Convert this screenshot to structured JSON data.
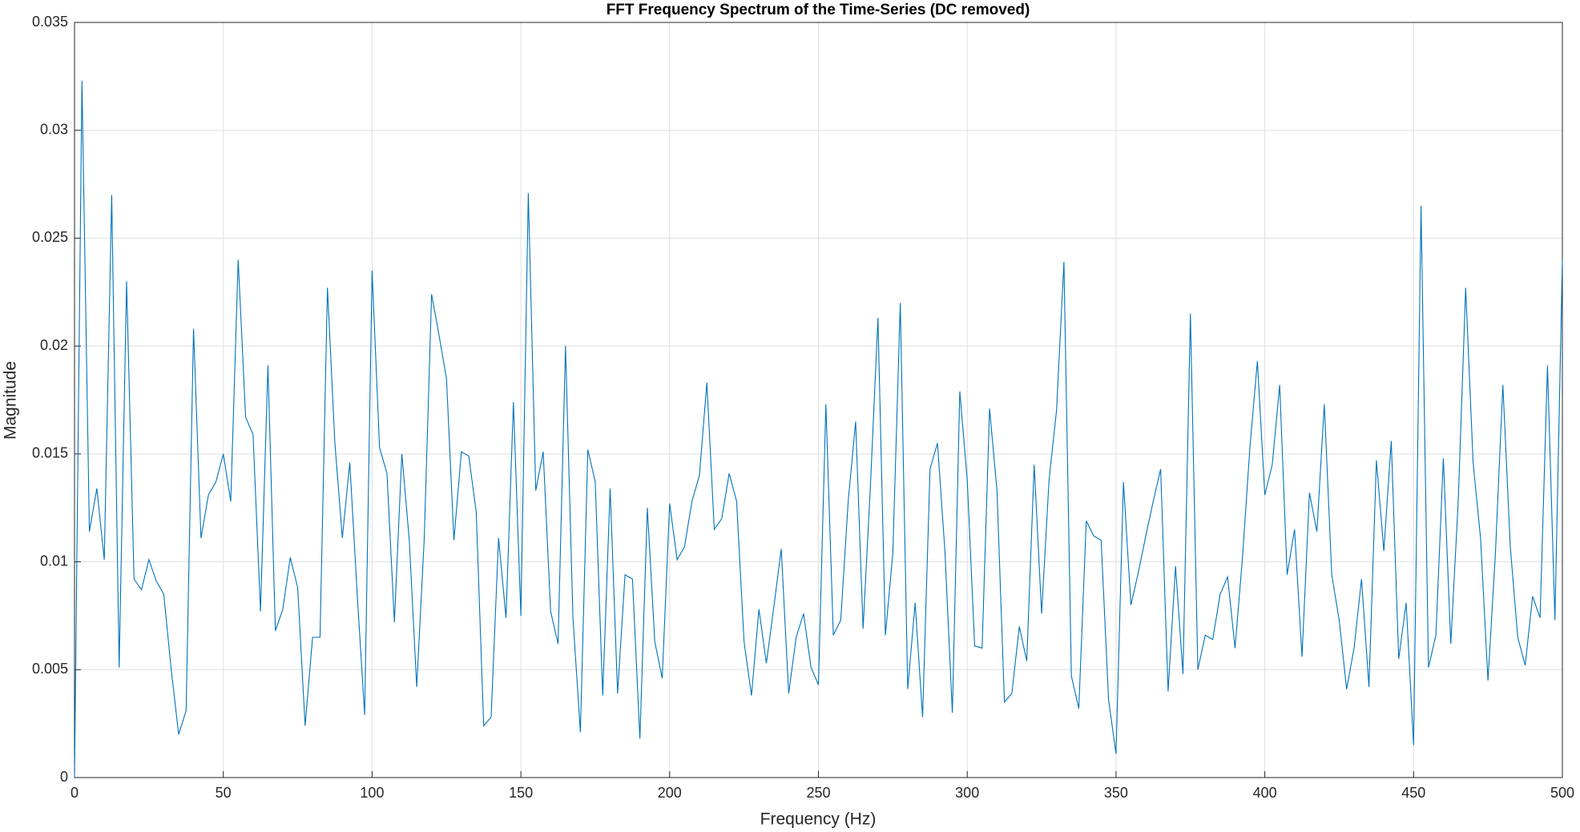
{
  "chart_data": {
    "type": "line",
    "title": "FFT Frequency Spectrum of the Time-Series (DC removed)",
    "xlabel": "Frequency (Hz)",
    "ylabel": "Magnitude",
    "color": "#0072bd",
    "grid": true,
    "xlim": [
      0,
      500
    ],
    "ylim": [
      0,
      0.035
    ],
    "xticks": [
      0,
      50,
      100,
      150,
      200,
      250,
      300,
      350,
      400,
      450,
      500
    ],
    "yticks": [
      0,
      0.005,
      0.01,
      0.015,
      0.02,
      0.025,
      0.03,
      0.035
    ],
    "x": [
      0,
      2.5,
      5,
      7.5,
      10,
      12.5,
      15,
      17.5,
      20,
      22.5,
      25,
      27.5,
      30,
      32.5,
      35,
      37.5,
      40,
      42.5,
      45,
      47.5,
      50,
      52.5,
      55,
      57.5,
      60,
      62.5,
      65,
      67.5,
      70,
      72.5,
      75,
      77.5,
      80,
      82.5,
      85,
      87.5,
      90,
      92.5,
      95,
      97.5,
      100,
      102.5,
      105,
      107.5,
      110,
      112.5,
      115,
      117.5,
      120,
      122.5,
      125,
      127.5,
      130,
      132.5,
      135,
      137.5,
      140,
      142.5,
      145,
      147.5,
      150,
      152.5,
      155,
      157.5,
      160,
      162.5,
      165,
      167.5,
      170,
      172.5,
      175,
      177.5,
      180,
      182.5,
      185,
      187.5,
      190,
      192.5,
      195,
      197.5,
      200,
      202.5,
      205,
      207.5,
      210,
      212.5,
      215,
      217.5,
      220,
      222.5,
      225,
      227.5,
      230,
      232.5,
      235,
      237.5,
      240,
      242.5,
      245,
      247.5,
      250,
      252.5,
      255,
      257.5,
      260,
      262.5,
      265,
      267.5,
      270,
      272.5,
      275,
      277.5,
      280,
      282.5,
      285,
      287.5,
      290,
      292.5,
      295,
      297.5,
      300,
      302.5,
      305,
      307.5,
      310,
      312.5,
      315,
      317.5,
      320,
      322.5,
      325,
      327.5,
      330,
      332.5,
      335,
      337.5,
      340,
      342.5,
      345,
      347.5,
      350,
      352.5,
      355,
      357.5,
      360,
      362.5,
      365,
      367.5,
      370,
      372.5,
      375,
      377.5,
      380,
      382.5,
      385,
      387.5,
      390,
      392.5,
      395,
      397.5,
      400,
      402.5,
      405,
      407.5,
      410,
      412.5,
      415,
      417.5,
      420,
      422.5,
      425,
      427.5,
      430,
      432.5,
      435,
      437.5,
      440,
      442.5,
      445,
      447.5,
      450,
      452.5,
      455,
      457.5,
      460,
      462.5,
      465,
      467.5,
      470,
      472.5,
      475,
      477.5,
      480,
      482.5,
      485,
      487.5,
      490,
      492.5,
      495,
      497.5,
      500
    ],
    "values": [
      0,
      0.0323,
      0.0114,
      0.0134,
      0.0101,
      0.027,
      0.0051,
      0.023,
      0.0092,
      0.0087,
      0.0101,
      0.0091,
      0.0085,
      0.005,
      0.002,
      0.0031,
      0.0208,
      0.0111,
      0.0131,
      0.0137,
      0.015,
      0.0128,
      0.024,
      0.0167,
      0.0159,
      0.0077,
      0.0191,
      0.0068,
      0.0078,
      0.0102,
      0.0088,
      0.0024,
      0.0065,
      0.0065,
      0.0227,
      0.0155,
      0.0111,
      0.0146,
      0.0085,
      0.0029,
      0.0235,
      0.0153,
      0.0141,
      0.0072,
      0.015,
      0.011,
      0.0042,
      0.011,
      0.0224,
      0.0205,
      0.0185,
      0.011,
      0.0151,
      0.0149,
      0.0123,
      0.0024,
      0.0028,
      0.0111,
      0.0074,
      0.0174,
      0.0075,
      0.0271,
      0.0133,
      0.0151,
      0.0077,
      0.0062,
      0.02,
      0.0074,
      0.0021,
      0.0152,
      0.0137,
      0.0038,
      0.0134,
      0.0039,
      0.0094,
      0.0092,
      0.0018,
      0.0125,
      0.0063,
      0.0046,
      0.0127,
      0.0101,
      0.0107,
      0.0128,
      0.014,
      0.0183,
      0.0115,
      0.012,
      0.0141,
      0.0128,
      0.0063,
      0.0038,
      0.0078,
      0.0053,
      0.0079,
      0.0106,
      0.0039,
      0.0065,
      0.0076,
      0.0051,
      0.0043,
      0.0173,
      0.0066,
      0.0073,
      0.0128,
      0.0165,
      0.0069,
      0.0136,
      0.0213,
      0.0066,
      0.0104,
      0.022,
      0.0041,
      0.0081,
      0.0028,
      0.0143,
      0.0155,
      0.0105,
      0.003,
      0.0179,
      0.0138,
      0.0061,
      0.006,
      0.0171,
      0.0133,
      0.0035,
      0.0039,
      0.007,
      0.0054,
      0.0145,
      0.0076,
      0.0138,
      0.017,
      0.0239,
      0.0047,
      0.0032,
      0.0119,
      0.0112,
      0.011,
      0.0036,
      0.0011,
      0.0137,
      0.008,
      0.0095,
      0.0112,
      0.0128,
      0.0143,
      0.004,
      0.0098,
      0.0048,
      0.0215,
      0.005,
      0.0066,
      0.0064,
      0.0085,
      0.0093,
      0.006,
      0.0102,
      0.0153,
      0.0193,
      0.0131,
      0.0145,
      0.0182,
      0.0094,
      0.0115,
      0.0056,
      0.0132,
      0.0114,
      0.0173,
      0.0094,
      0.0073,
      0.0041,
      0.006,
      0.0092,
      0.0042,
      0.0147,
      0.0105,
      0.0156,
      0.0055,
      0.0081,
      0.0015,
      0.0265,
      0.0051,
      0.0066,
      0.0148,
      0.0062,
      0.0128,
      0.0227,
      0.0146,
      0.0111,
      0.0045,
      0.0104,
      0.0182,
      0.0107,
      0.0065,
      0.0052,
      0.0084,
      0.0074,
      0.0191,
      0.0073,
      0.024
    ]
  }
}
